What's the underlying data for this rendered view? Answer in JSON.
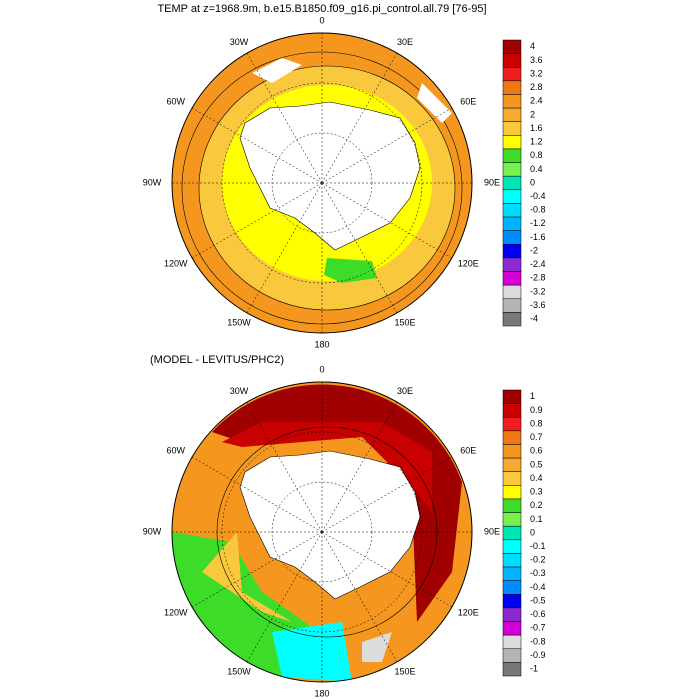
{
  "panels": [
    {
      "title": "TEMP at z=1968.9m, b.e15.B1850.f09_g16.pi_control.all.79 [76-95]",
      "lon_labels": [
        "0",
        "30E",
        "60E",
        "90E",
        "120E",
        "150E",
        "180",
        "150W",
        "120W",
        "90W",
        "60W",
        "30W"
      ],
      "colorbar": {
        "labels": [
          4,
          3.6,
          3.2,
          2.8,
          2.4,
          2,
          1.6,
          1.2,
          0.8,
          0.4,
          0,
          -0.4,
          -0.8,
          -1.2,
          -1.6,
          -2,
          -2.4,
          -2.8,
          -3.2,
          -3.6,
          -4
        ],
        "colors": [
          "#a00000",
          "#c80000",
          "#f01e1e",
          "#f07814",
          "#f5961e",
          "#f5aa32",
          "#fac83c",
          "#ffff00",
          "#3cdc28",
          "#78f050",
          "#00e6b4",
          "#00ffff",
          "#00dcff",
          "#00b4ff",
          "#008cff",
          "#0000f0",
          "#8c28d2",
          "#d200d2",
          "#dcdcdc",
          "#b4b4b4",
          "#787878"
        ]
      }
    },
    {
      "title": "(MODEL - LEVITUS/PHC2)",
      "lon_labels": [
        "0",
        "30E",
        "60E",
        "90E",
        "120E",
        "150E",
        "180",
        "150W",
        "120W",
        "90W",
        "60W",
        "30W"
      ],
      "colorbar": {
        "labels": [
          1,
          0.9,
          0.8,
          0.7,
          0.6,
          0.5,
          0.4,
          0.3,
          0.2,
          0.1,
          0,
          -0.1,
          -0.2,
          -0.3,
          -0.4,
          -0.5,
          -0.6,
          -0.7,
          -0.8,
          -0.9,
          -1
        ],
        "colors": [
          "#a00000",
          "#c80000",
          "#f01e1e",
          "#f07814",
          "#f5961e",
          "#f5aa32",
          "#fac83c",
          "#ffff00",
          "#3cdc28",
          "#78f050",
          "#00e6b4",
          "#00ffff",
          "#00dcff",
          "#00b4ff",
          "#008cff",
          "#0000f0",
          "#8c28d2",
          "#d200d2",
          "#dcdcdc",
          "#b4b4b4",
          "#787878"
        ]
      }
    }
  ]
}
